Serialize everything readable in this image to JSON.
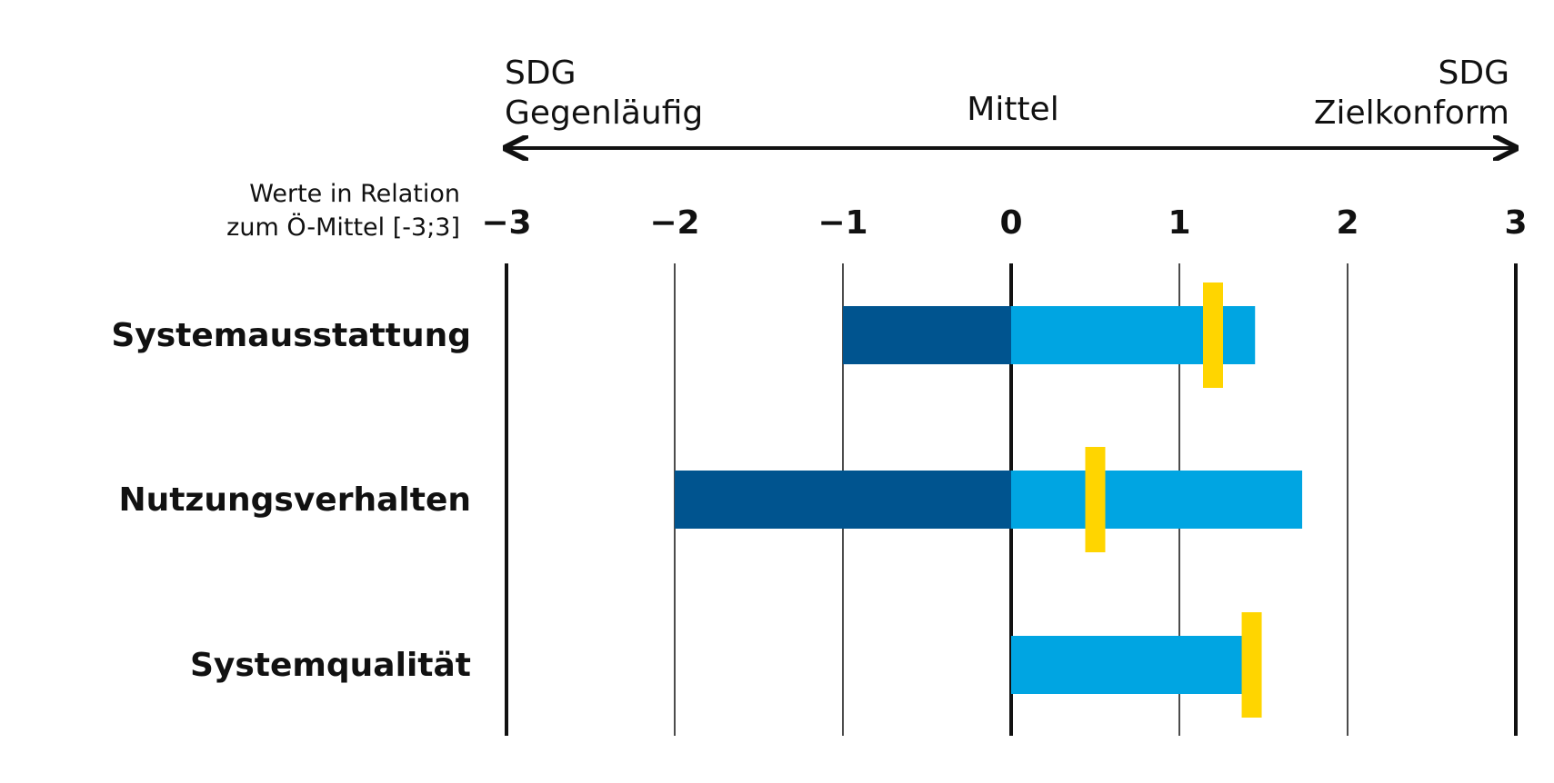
{
  "colors": {
    "negative_bar": "#00548f",
    "positive_bar": "#00a5e2",
    "marker": "#ffd500",
    "text": "#111111"
  },
  "header": {
    "left_line1": "SDG",
    "left_line2": "Gegenläufig",
    "center": "Mittel",
    "right_line1": "SDG",
    "right_line2": "Zielkonform"
  },
  "axis_note": {
    "line1": "Werte in Relation",
    "line2": "zum Ö-Mittel [-3;3]"
  },
  "chart_data": {
    "type": "bar",
    "orientation": "horizontal",
    "categories": [
      "Systemausstattung",
      "Nutzungsverhalten",
      "Systemqualität"
    ],
    "series": [
      {
        "range_min": [
          -1.0,
          -2.0,
          0.0
        ]
      },
      {
        "range_max": [
          1.45,
          1.73,
          1.38
        ]
      },
      {
        "marker": [
          1.2,
          0.5,
          1.43
        ]
      }
    ],
    "xlim": [
      -3,
      3
    ],
    "xticks": [
      -3,
      -2,
      -1,
      0,
      1,
      2,
      3
    ],
    "xtick_labels": [
      "-3",
      "-2",
      "-1",
      "0",
      "1",
      "2",
      "3"
    ],
    "grid": true
  }
}
